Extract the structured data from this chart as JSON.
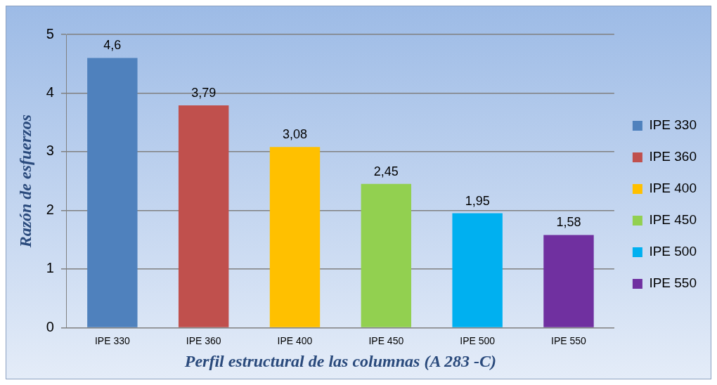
{
  "chart_data": {
    "type": "bar",
    "xlabel": "Perfil estructural de las columnas (A 283 -C)",
    "ylabel": "Razón de esfuerzos",
    "categories": [
      "IPE 330",
      "IPE 360",
      "IPE 400",
      "IPE 450",
      "IPE 500",
      "IPE 550"
    ],
    "series": [
      {
        "name": "IPE 330",
        "color": "#4f81bd",
        "values": [
          4.6,
          null,
          null,
          null,
          null,
          null
        ],
        "value_labels": [
          "4,6",
          null,
          null,
          null,
          null,
          null
        ]
      },
      {
        "name": "IPE 360",
        "color": "#c0504d",
        "values": [
          null,
          3.79,
          null,
          null,
          null,
          null
        ],
        "value_labels": [
          null,
          "3,79",
          null,
          null,
          null,
          null
        ]
      },
      {
        "name": "IPE 400",
        "color": "#ffc000",
        "values": [
          null,
          null,
          3.08,
          null,
          null,
          null
        ],
        "value_labels": [
          null,
          null,
          "3,08",
          null,
          null,
          null
        ]
      },
      {
        "name": "IPE 450",
        "color": "#92d050",
        "values": [
          null,
          null,
          null,
          2.45,
          null,
          null
        ],
        "value_labels": [
          null,
          null,
          null,
          "2,45",
          null,
          null
        ]
      },
      {
        "name": "IPE 500",
        "color": "#00b0f0",
        "values": [
          null,
          null,
          null,
          null,
          1.95,
          null
        ],
        "value_labels": [
          null,
          null,
          null,
          null,
          "1,95",
          null
        ]
      },
      {
        "name": "IPE 550",
        "color": "#7030a0",
        "values": [
          null,
          null,
          null,
          null,
          null,
          1.58
        ],
        "value_labels": [
          null,
          null,
          null,
          null,
          null,
          "1,58"
        ]
      }
    ],
    "ylim": [
      0,
      5
    ],
    "yticks": [
      0,
      1,
      2,
      3,
      4,
      5
    ],
    "grid": "y",
    "legend": "right"
  }
}
